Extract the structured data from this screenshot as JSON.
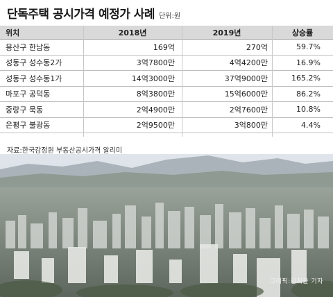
{
  "header": {
    "title": "단독주택 공시가격 예정가 사례",
    "unit": "단위:원"
  },
  "table": {
    "columns": [
      "위치",
      "2018년",
      "2019년",
      "상승률"
    ],
    "rows": [
      {
        "loc": "용산구 한남동",
        "y2018": "169억",
        "y2019": "270억",
        "rate": "59.7%"
      },
      {
        "loc": "성동구 성수동2가",
        "y2018": "3억7800만",
        "y2019": "4억4200만",
        "rate": "16.9%"
      },
      {
        "loc": "성동구 성수동1가",
        "y2018": "14억3000만",
        "y2019": "37억9000만",
        "rate": "165.2%"
      },
      {
        "loc": "마포구 공덕동",
        "y2018": "8억3800만",
        "y2019": "15억6000만",
        "rate": "86.2%"
      },
      {
        "loc": "중랑구 묵동",
        "y2018": "2억4900만",
        "y2019": "2억7600만",
        "rate": "10.8%"
      },
      {
        "loc": "은평구 불광동",
        "y2018": "2억9500만",
        "y2019": "3억800만",
        "rate": "4.4%"
      }
    ]
  },
  "source": "자료:한국감정원 부동산공시가격 알리미",
  "photo": {
    "credit": "그래픽:김지윤 기자"
  }
}
